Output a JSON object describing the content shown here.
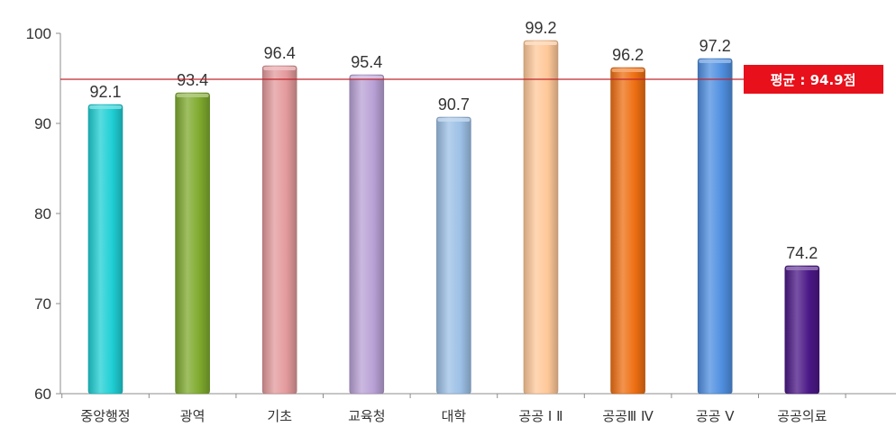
{
  "chart_data": {
    "type": "bar",
    "categories": [
      "중앙행정",
      "광역",
      "기초",
      "교육청",
      "대학",
      "공공 Ⅰ Ⅱ",
      "공공Ⅲ Ⅳ",
      "공공 Ⅴ",
      "공공의료"
    ],
    "values": [
      92.1,
      93.4,
      96.4,
      95.4,
      90.7,
      99.2,
      96.2,
      97.2,
      74.2
    ],
    "value_labels": [
      "92.1",
      "93.4",
      "96.4",
      "95.4",
      "90.7",
      "99.2",
      "96.2",
      "97.2",
      "74.2"
    ],
    "colors": [
      "#1FCFD4",
      "#7FAA2E",
      "#E39A9C",
      "#B9A1D6",
      "#9CC0E6",
      "#FFC899",
      "#EE6F12",
      "#4F8FE0",
      "#4B1886"
    ],
    "ylim": [
      60,
      100
    ],
    "yticks": [
      60,
      70,
      80,
      90,
      100
    ],
    "ytick_labels": [
      "60",
      "70",
      "80",
      "90",
      "100"
    ],
    "average": {
      "value": 94.9,
      "label": "평균 : 94.9점",
      "line_color": "#C0262D",
      "badge_color": "#E8101A"
    },
    "title": "",
    "xlabel": "",
    "ylabel": "",
    "grid": false,
    "legend": "none"
  }
}
